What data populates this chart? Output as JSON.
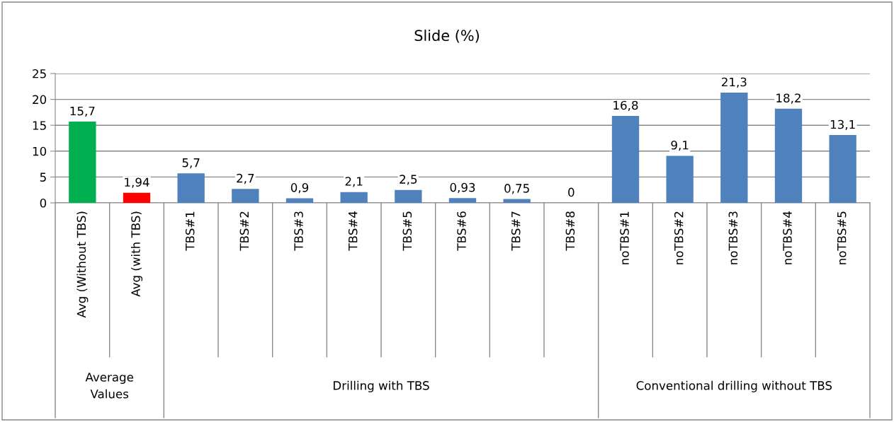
{
  "chart_data": {
    "type": "bar",
    "title": "Slide (%)",
    "categories": [
      "Avg (Without TBS)",
      "Avg (with TBS)",
      "TBS#1",
      "TBS#2",
      "TBS#3",
      "TBS#4",
      "TBS#5",
      "TBS#6",
      "TBS#7",
      "TBS#8",
      "noTBS#1",
      "noTBS#2",
      "noTBS#3",
      "noTBS#4",
      "noTBS#5"
    ],
    "values": [
      15.7,
      1.94,
      5.7,
      2.7,
      0.9,
      2.1,
      2.5,
      0.93,
      0.75,
      0,
      16.8,
      9.1,
      21.3,
      18.2,
      13.1
    ],
    "value_labels": [
      "15,7",
      "1,94",
      "5,7",
      "2,7",
      "0,9",
      "2,1",
      "2,5",
      "0,93",
      "0,75",
      "0",
      "16,8",
      "9,1",
      "21,3",
      "18,2",
      "13,1"
    ],
    "colors": [
      "#00b050",
      "#ff0000",
      "#4f81bd",
      "#4f81bd",
      "#4f81bd",
      "#4f81bd",
      "#4f81bd",
      "#4f81bd",
      "#4f81bd",
      "#4f81bd",
      "#4f81bd",
      "#4f81bd",
      "#4f81bd",
      "#4f81bd",
      "#4f81bd"
    ],
    "ylim": [
      0,
      25
    ],
    "yticks": [
      0,
      5,
      10,
      15,
      20,
      25
    ],
    "grid": "y",
    "legend": false,
    "annotations": [
      "Average\nValues",
      "Drilling with TBS",
      "Conventional drilling without TBS"
    ]
  }
}
